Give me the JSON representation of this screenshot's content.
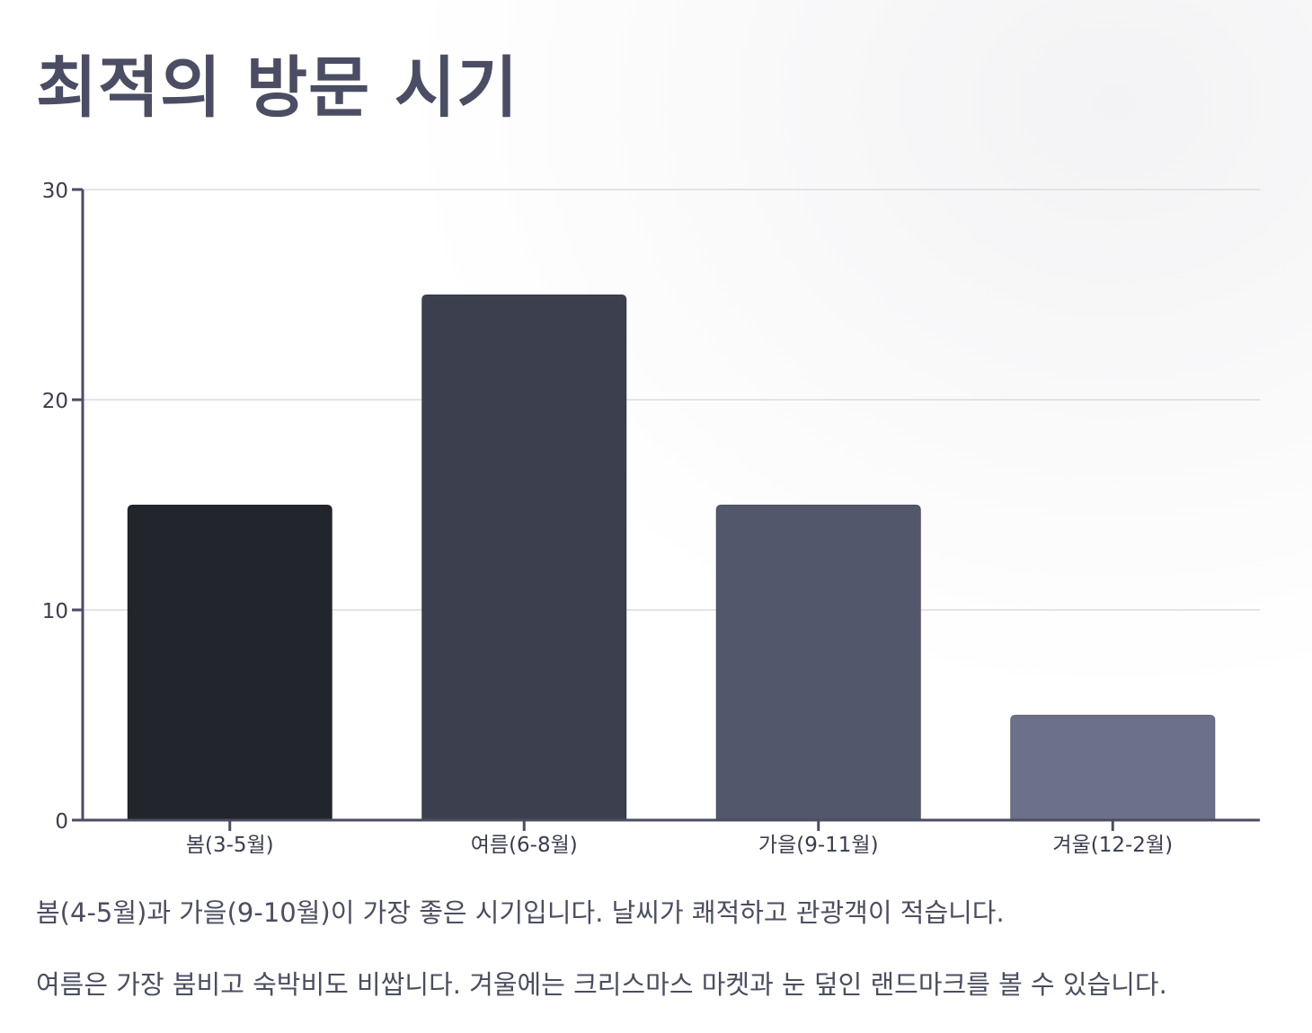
{
  "page": {
    "title": "최적의 방문 시기",
    "paragraphs": [
      "봄(4-5월)과 가을(9-10월)이 가장 좋은 시기입니다. 날씨가 쾌적하고 관광객이 적습니다.",
      "여름은 가장 붐비고 숙박비도 비쌉니다. 겨울에는 크리스마스 마켓과 눈 덮인 랜드마크를 볼 수 있습니다."
    ]
  },
  "chart_data": {
    "type": "bar",
    "title": "",
    "xlabel": "",
    "ylabel": "",
    "categories": [
      "봄(3-5월)",
      "여름(6-8월)",
      "가을(9-11월)",
      "겨울(12-2월)"
    ],
    "values": [
      15,
      25,
      15,
      5
    ],
    "ylim": [
      0,
      30
    ],
    "yticks": [
      0,
      10,
      20,
      30
    ],
    "grid": true,
    "legend": false,
    "colors": [
      "#22252c",
      "#3c3f4e",
      "#52576c",
      "#6c7089"
    ],
    "axis_color": "#4a4d63",
    "grid_color": "#dcdcdf",
    "tick_label_color": "#3a3d4c"
  }
}
